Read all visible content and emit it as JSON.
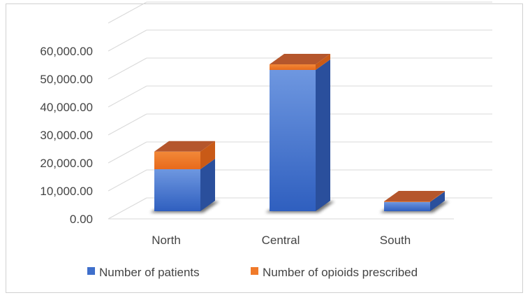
{
  "chart_data": {
    "type": "bar",
    "stacked": true,
    "three_d": true,
    "categories": [
      "North",
      "Central",
      "South"
    ],
    "series": [
      {
        "name": "Number of patients",
        "values": [
          15000,
          50500,
          3300
        ],
        "color": "#3F6FCB"
      },
      {
        "name": "Number of opioids prescribed",
        "values": [
          6300,
          2000,
          200
        ],
        "color": "#F07A2A"
      }
    ],
    "y_ticks": [
      "0.00",
      "10,000.00",
      "20,000.00",
      "30,000.00",
      "40,000.00",
      "50,000.00",
      "60,000.00"
    ],
    "ylim": [
      0,
      70000
    ],
    "grid": true,
    "legend": "bottom"
  }
}
